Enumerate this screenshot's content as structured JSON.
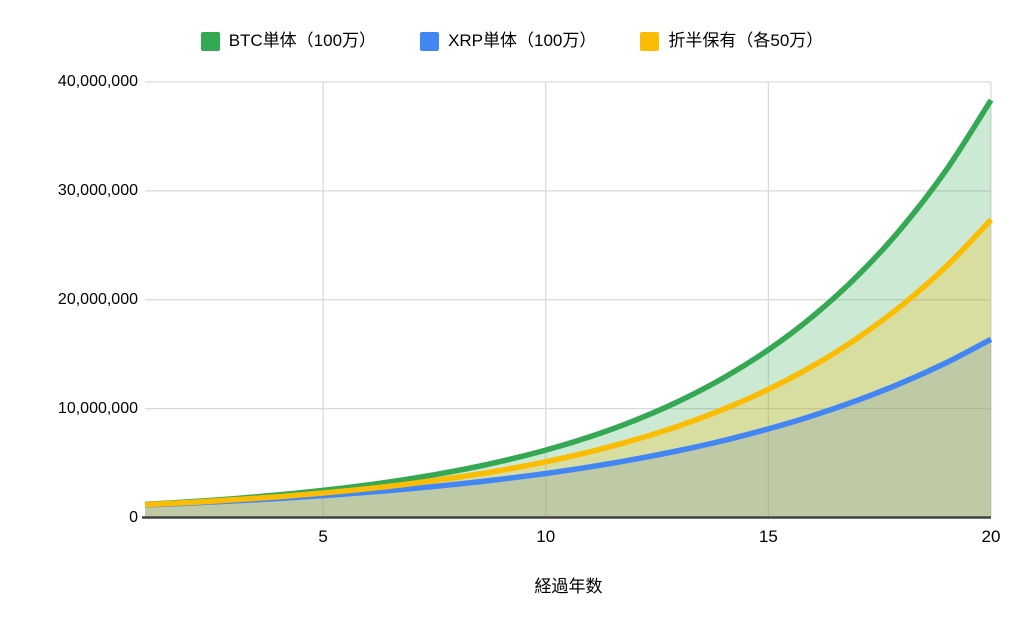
{
  "colors": {
    "grid": "#d9d9d9",
    "baseline": "#424242",
    "text": "#000000",
    "background": "#ffffff"
  },
  "chart_data": {
    "type": "area",
    "xlabel": "経過年数",
    "ylabel": "",
    "xlim": [
      1,
      20
    ],
    "ylim": [
      0,
      40000000
    ],
    "grid": true,
    "legend_position": "top",
    "area_opacity": 0.25,
    "line_width": 5.5,
    "x": [
      1,
      2,
      3,
      4,
      5,
      6,
      7,
      8,
      9,
      10,
      11,
      12,
      13,
      14,
      15,
      16,
      17,
      18,
      19,
      20
    ],
    "x_ticks": [
      {
        "value": 5,
        "label": "5"
      },
      {
        "value": 10,
        "label": "10"
      },
      {
        "value": 15,
        "label": "15"
      },
      {
        "value": 20,
        "label": "20"
      }
    ],
    "y_ticks": [
      {
        "value": 0,
        "label": "0"
      },
      {
        "value": 10000000,
        "label": "10,000,000"
      },
      {
        "value": 20000000,
        "label": "20,000,000"
      },
      {
        "value": 30000000,
        "label": "30,000,000"
      },
      {
        "value": 40000000,
        "label": "40,000,000"
      }
    ],
    "series": [
      {
        "name": "BTC単体（100万）",
        "color": "#34a853",
        "values": [
          1200000,
          1440000,
          1728000,
          2073600,
          2488320,
          2985984,
          3583181,
          4299817,
          5159780,
          6191736,
          7430084,
          8916100,
          10699321,
          12839185,
          15407022,
          18488426,
          22186111,
          26623333,
          31948000,
          38337600
        ]
      },
      {
        "name": "XRP単体（100万）",
        "color": "#4285f4",
        "values": [
          1150000,
          1322500,
          1520875,
          1749006,
          2011357,
          2313061,
          2660020,
          3059023,
          3517876,
          4045558,
          4652391,
          5350250,
          6152788,
          7075706,
          8137062,
          9357621,
          10761264,
          12375454,
          14231772,
          16366537
        ]
      },
      {
        "name": "折半保有（各50万）",
        "color": "#fbbc04",
        "values": [
          1175000,
          1381250,
          1624438,
          1911303,
          2249839,
          2649523,
          3121600,
          3679420,
          4338828,
          5118647,
          6041237,
          7133175,
          8426054,
          9957445,
          11772042,
          13923023,
          16473688,
          19499394,
          23089886,
          27352068
        ]
      }
    ]
  }
}
